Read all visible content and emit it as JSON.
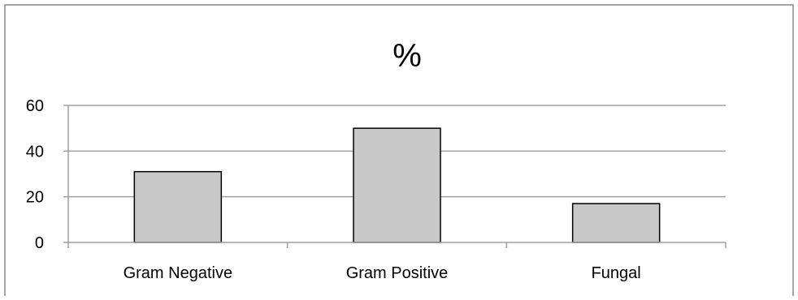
{
  "chart_data": {
    "type": "bar",
    "title": "%",
    "categories": [
      "Gram Negative",
      "Gram Positive",
      "Fungal"
    ],
    "values": [
      31,
      50,
      17
    ],
    "ylim": [
      0,
      60
    ],
    "yticks": [
      0,
      20,
      40,
      60
    ],
    "ytick_labels": [
      "0",
      "20",
      "40",
      "60"
    ],
    "xlabel": "",
    "ylabel": "",
    "grid": "horizontal major gridlines",
    "legend": "none",
    "colors": {
      "bar_fill": "#c8c8c8",
      "bar_stroke": "#000000",
      "gridline": "#a0a0a0",
      "axis": "#a0a0a0",
      "border": "#888888",
      "text": "#000000"
    }
  }
}
